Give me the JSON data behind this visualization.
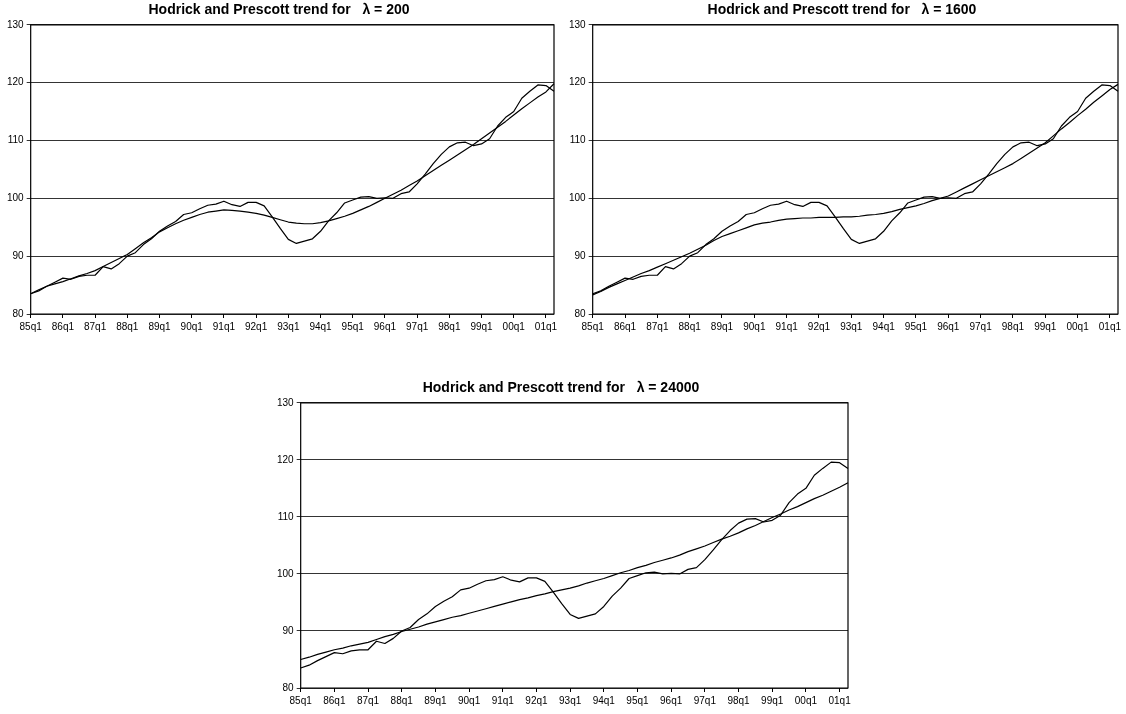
{
  "chart_data": [
    {
      "type": "line",
      "title": "Hodrick and Prescott trend for   λ = 200",
      "categories": [
        "85q1",
        null,
        null,
        null,
        "86q1",
        null,
        null,
        null,
        "87q1",
        null,
        null,
        null,
        "88q1",
        null,
        null,
        null,
        "89q1",
        null,
        null,
        null,
        "90q1",
        null,
        null,
        null,
        "91q1",
        null,
        null,
        null,
        "92q1",
        null,
        null,
        null,
        "93q1",
        null,
        null,
        null,
        "94q1",
        null,
        null,
        null,
        "95q1",
        null,
        null,
        null,
        "96q1",
        null,
        null,
        null,
        "97q1",
        null,
        null,
        null,
        "98q1",
        null,
        null,
        null,
        "99q1",
        null,
        null,
        null,
        "00q1",
        null,
        null,
        null,
        "01q1",
        null
      ],
      "series": [
        {
          "color": "#000000",
          "values": [
            83.5,
            84.0,
            84.8,
            85.5,
            86.2,
            86.0,
            86.5,
            86.7,
            86.7,
            88.2,
            87.8,
            88.7,
            90.0,
            90.6,
            92.0,
            93.0,
            94.3,
            95.2,
            96.0,
            97.2,
            97.5,
            98.2,
            98.8,
            99.0,
            99.5,
            98.9,
            98.6,
            99.3,
            99.3,
            98.7,
            96.8,
            94.8,
            92.9,
            92.2,
            92.6,
            93.0,
            94.3,
            96.1,
            97.5,
            99.2,
            99.7,
            100.2,
            100.3,
            100.0,
            100.1,
            100.0,
            100.8,
            101.1,
            102.5,
            104.2,
            106.0,
            107.6,
            108.9,
            109.6,
            109.7,
            109.1,
            109.4,
            110.3,
            112.5,
            114.0,
            115.0,
            117.3,
            118.5,
            119.6,
            119.5,
            118.5
          ]
        },
        {
          "color": "#000000",
          "values": [
            83.5,
            84.2,
            84.8,
            85.2,
            85.6,
            86.1,
            86.6,
            87.0,
            87.5,
            88.2,
            88.9,
            89.6,
            90.3,
            91.3,
            92.3,
            93.2,
            94.2,
            94.9,
            95.6,
            96.2,
            96.7,
            97.2,
            97.6,
            97.8,
            98.0,
            97.9,
            97.8,
            97.6,
            97.4,
            97.1,
            96.7,
            96.3,
            95.9,
            95.7,
            95.6,
            95.6,
            95.8,
            96.1,
            96.5,
            96.9,
            97.4,
            98.0,
            98.6,
            99.3,
            100.0,
            100.7,
            101.4,
            102.2,
            103.0,
            103.9,
            104.8,
            105.7,
            106.6,
            107.5,
            108.4,
            109.3,
            110.3,
            111.3,
            112.3,
            113.3,
            114.4,
            115.5,
            116.5,
            117.5,
            118.4,
            119.8
          ]
        }
      ],
      "ylim": [
        80,
        130
      ],
      "yticks": [
        80,
        90,
        100,
        110,
        120,
        130
      ],
      "grid": "y",
      "legend": false,
      "marker": "none",
      "line_style": "solid"
    },
    {
      "type": "line",
      "title": "Hodrick and Prescott trend for   λ = 1600",
      "categories": [
        "85q1",
        null,
        null,
        null,
        "86q1",
        null,
        null,
        null,
        "87q1",
        null,
        null,
        null,
        "88q1",
        null,
        null,
        null,
        "89q1",
        null,
        null,
        null,
        "90q1",
        null,
        null,
        null,
        "91q1",
        null,
        null,
        null,
        "92q1",
        null,
        null,
        null,
        "93q1",
        null,
        null,
        null,
        "94q1",
        null,
        null,
        null,
        "95q1",
        null,
        null,
        null,
        "96q1",
        null,
        null,
        null,
        "97q1",
        null,
        null,
        null,
        "98q1",
        null,
        null,
        null,
        "99q1",
        null,
        null,
        null,
        "00q1",
        null,
        null,
        null,
        "01q1",
        null
      ],
      "series": [
        {
          "color": "#000000",
          "values": [
            83.5,
            84.0,
            84.8,
            85.5,
            86.2,
            86.0,
            86.5,
            86.7,
            86.7,
            88.2,
            87.8,
            88.7,
            90.0,
            90.6,
            92.0,
            93.0,
            94.3,
            95.2,
            96.0,
            97.2,
            97.5,
            98.2,
            98.8,
            99.0,
            99.5,
            98.9,
            98.6,
            99.3,
            99.3,
            98.7,
            96.8,
            94.8,
            92.9,
            92.2,
            92.6,
            93.0,
            94.3,
            96.1,
            97.5,
            99.2,
            99.7,
            100.2,
            100.3,
            100.0,
            100.1,
            100.0,
            100.8,
            101.1,
            102.5,
            104.2,
            106.0,
            107.6,
            108.9,
            109.6,
            109.7,
            109.1,
            109.4,
            110.3,
            112.5,
            114.0,
            115.0,
            117.3,
            118.5,
            119.6,
            119.5,
            118.5
          ]
        },
        {
          "color": "#000000",
          "values": [
            83.3,
            83.9,
            84.6,
            85.2,
            85.8,
            86.4,
            87.0,
            87.5,
            88.1,
            88.7,
            89.3,
            89.9,
            90.5,
            91.2,
            91.9,
            92.7,
            93.4,
            93.9,
            94.4,
            94.9,
            95.4,
            95.7,
            95.9,
            96.2,
            96.4,
            96.5,
            96.6,
            96.6,
            96.7,
            96.7,
            96.7,
            96.8,
            96.8,
            96.9,
            97.1,
            97.2,
            97.4,
            97.7,
            98.1,
            98.4,
            98.7,
            99.1,
            99.6,
            100.0,
            100.4,
            101.1,
            101.8,
            102.5,
            103.2,
            103.9,
            104.6,
            105.3,
            106.0,
            106.9,
            107.8,
            108.7,
            109.6,
            110.8,
            112.0,
            113.1,
            114.3,
            115.4,
            116.6,
            117.7,
            118.8,
            119.7
          ]
        }
      ],
      "ylim": [
        80,
        130
      ],
      "yticks": [
        80,
        90,
        100,
        110,
        120,
        130
      ],
      "grid": "y",
      "legend": false,
      "marker": "none",
      "line_style": "solid"
    },
    {
      "type": "line",
      "title": "Hodrick and Prescott trend for   λ = 24000",
      "categories": [
        "85q1",
        null,
        null,
        null,
        "86q1",
        null,
        null,
        null,
        "87q1",
        null,
        null,
        null,
        "88q1",
        null,
        null,
        null,
        "89q1",
        null,
        null,
        null,
        "90q1",
        null,
        null,
        null,
        "91q1",
        null,
        null,
        null,
        "92q1",
        null,
        null,
        null,
        "93q1",
        null,
        null,
        null,
        "94q1",
        null,
        null,
        null,
        "95q1",
        null,
        null,
        null,
        "96q1",
        null,
        null,
        null,
        "97q1",
        null,
        null,
        null,
        "98q1",
        null,
        null,
        null,
        "99q1",
        null,
        null,
        null,
        "00q1",
        null,
        null,
        null,
        "01q1",
        null
      ],
      "series": [
        {
          "color": "#000000",
          "values": [
            83.5,
            84.0,
            84.8,
            85.5,
            86.2,
            86.0,
            86.5,
            86.7,
            86.7,
            88.2,
            87.8,
            88.7,
            90.0,
            90.6,
            92.0,
            93.0,
            94.3,
            95.2,
            96.0,
            97.2,
            97.5,
            98.2,
            98.8,
            99.0,
            99.5,
            98.9,
            98.6,
            99.3,
            99.3,
            98.7,
            96.8,
            94.8,
            92.9,
            92.2,
            92.6,
            93.0,
            94.3,
            96.1,
            97.5,
            99.2,
            99.7,
            100.2,
            100.3,
            100.0,
            100.1,
            100.0,
            100.8,
            101.1,
            102.5,
            104.2,
            106.0,
            107.6,
            108.9,
            109.6,
            109.7,
            109.1,
            109.4,
            110.3,
            112.5,
            114.0,
            115.0,
            117.3,
            118.5,
            119.6,
            119.5,
            118.5
          ]
        },
        {
          "color": "#000000",
          "values": [
            85.0,
            85.4,
            85.9,
            86.3,
            86.7,
            87.0,
            87.4,
            87.7,
            88.0,
            88.5,
            89.0,
            89.4,
            89.9,
            90.3,
            90.7,
            91.2,
            91.6,
            92.0,
            92.4,
            92.7,
            93.1,
            93.5,
            93.9,
            94.3,
            94.7,
            95.1,
            95.5,
            95.8,
            96.2,
            96.5,
            96.9,
            97.2,
            97.5,
            97.9,
            98.4,
            98.8,
            99.2,
            99.7,
            100.2,
            100.6,
            101.1,
            101.5,
            102.0,
            102.4,
            102.8,
            103.3,
            103.9,
            104.4,
            104.9,
            105.5,
            106.1,
            106.6,
            107.2,
            107.9,
            108.5,
            109.2,
            109.9,
            110.5,
            111.2,
            111.8,
            112.5,
            113.2,
            113.8,
            114.5,
            115.2,
            116.0
          ]
        }
      ],
      "ylim": [
        80,
        130
      ],
      "yticks": [
        80,
        90,
        100,
        110,
        120,
        130
      ],
      "grid": "y",
      "legend": false,
      "marker": "none",
      "line_style": "solid"
    }
  ]
}
